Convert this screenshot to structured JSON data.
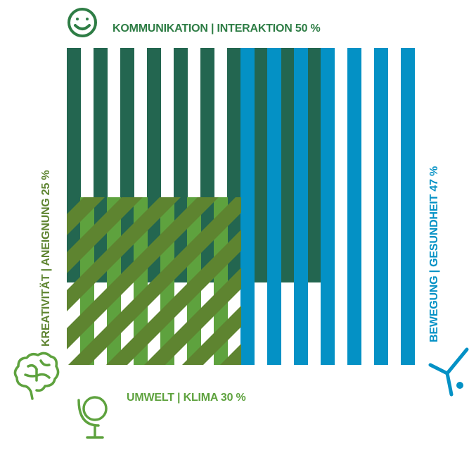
{
  "labels": {
    "top": "KOMMUNIKATION | INTERAKTION 50 %",
    "left": "KREATIVITÄT | ANEIGNUNG 25 %",
    "right": "BEWEGUNG | GESUNDHEIT 47 %",
    "bottom": "UMWELT | KLIMA 30 %"
  },
  "icons": {
    "top": "smiley-face-icon",
    "left": "brain-icon",
    "right": "gymnast-figure-icon",
    "bottom": "globe-icon"
  },
  "categories": [
    {
      "name": "KOMMUNIKATION | INTERAKTION",
      "percent": 50,
      "color": "#236650"
    },
    {
      "name": "BEWEGUNG | GESUNDHEIT",
      "percent": 47,
      "color": "#0491c5"
    },
    {
      "name": "UMWELT | KLIMA",
      "percent": 30,
      "color": "#5ea23e"
    },
    {
      "name": "KREATIVITÄT | ANEIGNUNG",
      "percent": 25,
      "color": "#5e8430"
    }
  ],
  "colors": {
    "dark_green": "#236650",
    "blue": "#0491c5",
    "light_green": "#5ea23e",
    "olive": "#5e8430",
    "text_green": "#2e7d45",
    "text_light_green": "#5ea23e",
    "text_blue": "#0491c5"
  }
}
